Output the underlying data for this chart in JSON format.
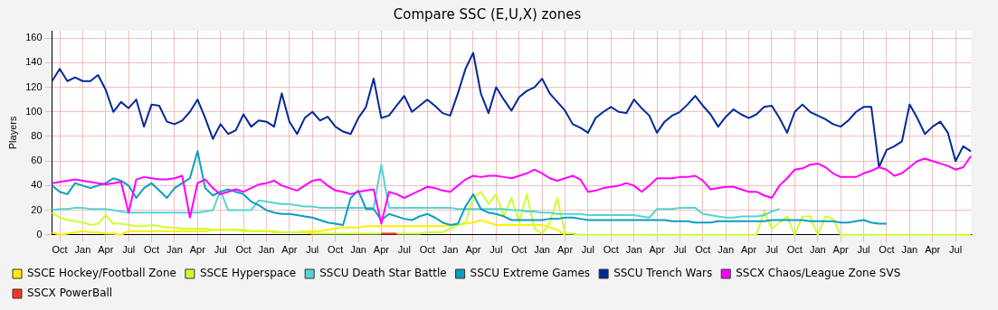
{
  "chart_data": {
    "type": "line",
    "title": "Compare SSC (E,U,X) zones",
    "ylabel": "Players",
    "grid": true,
    "legend": "bottom",
    "marker": "none",
    "line_style": "solid",
    "ylim": [
      0,
      166
    ],
    "yticks": [
      0,
      20,
      40,
      60,
      80,
      100,
      120,
      140,
      160
    ],
    "categories": [
      null,
      "Oct",
      null,
      null,
      "Jan",
      null,
      null,
      "Apr",
      null,
      null,
      "Jul",
      null,
      null,
      "Oct",
      null,
      null,
      "Jan",
      null,
      null,
      "Apr",
      null,
      null,
      "Jul",
      null,
      null,
      "Oct",
      null,
      null,
      "Jan",
      null,
      null,
      "Apr",
      null,
      null,
      "Jul",
      null,
      null,
      "Oct",
      null,
      null,
      "Jan",
      null,
      null,
      "Apr",
      null,
      null,
      "Jul",
      null,
      null,
      "Oct",
      null,
      null,
      "Jan",
      null,
      null,
      "Apr",
      null,
      null,
      "Jul",
      null,
      null,
      "Oct",
      null,
      null,
      "Jan",
      null,
      null,
      "Apr",
      null,
      null,
      "Jul",
      null,
      null,
      "Oct",
      null,
      null,
      "Jan",
      null,
      null,
      "Apr",
      null,
      null,
      "Jul",
      null,
      null,
      "Oct",
      null,
      null,
      "Jan",
      null,
      null,
      "Apr",
      null,
      null,
      "Jul",
      null,
      null,
      "Oct",
      null,
      null,
      "Jan",
      null,
      null,
      "Apr",
      null,
      null,
      "Jul",
      null,
      null,
      "Oct",
      null,
      null,
      "Jan",
      null,
      null,
      "Apr",
      null,
      null,
      "Jul",
      null,
      null
    ],
    "series": [
      {
        "name": "SSCE Hockey/Football Zone",
        "color": "#ffee00",
        "values": [
          2,
          0,
          1,
          2,
          3,
          2,
          2,
          1,
          1,
          0,
          3,
          3,
          3,
          3,
          3,
          3,
          3,
          3,
          3,
          3,
          3,
          4,
          4,
          4,
          4,
          4,
          3,
          3,
          3,
          3,
          2,
          2,
          2,
          3,
          3,
          3,
          4,
          5,
          6,
          6,
          6,
          7,
          7,
          7,
          7,
          7,
          7,
          7,
          7,
          7,
          7,
          7,
          8,
          8,
          9,
          10,
          12,
          10,
          8,
          8,
          8,
          8,
          8,
          8,
          8,
          6,
          4,
          0,
          null,
          null,
          null,
          null,
          null,
          null,
          null,
          null,
          null,
          null,
          null,
          null,
          null,
          null,
          null,
          null,
          null,
          null,
          null,
          null,
          null,
          null,
          null,
          null,
          null,
          null,
          null,
          null,
          null,
          null,
          null,
          null,
          null,
          null,
          null,
          null,
          null,
          null,
          null,
          null,
          null,
          null,
          null,
          null,
          null,
          null,
          null,
          null,
          null,
          null,
          null,
          null,
          null
        ]
      },
      {
        "name": "SSCE Hyperspace",
        "color": "#ccff33",
        "values": [
          18,
          14,
          12,
          11,
          10,
          8,
          9,
          16,
          9,
          9,
          8,
          7,
          7,
          8,
          7,
          6,
          6,
          5,
          5,
          5,
          5,
          4,
          4,
          4,
          4,
          3,
          3,
          3,
          3,
          2,
          2,
          2,
          2,
          2,
          1,
          1,
          1,
          1,
          1,
          1,
          1,
          1,
          1,
          1,
          null,
          1,
          1,
          1,
          1,
          2,
          2,
          2,
          5,
          8,
          10,
          30,
          35,
          25,
          33,
          15,
          30,
          10,
          33,
          5,
          1,
          10,
          30,
          1,
          1,
          0,
          0,
          0,
          0,
          0,
          0,
          0,
          0,
          0,
          0,
          0,
          0,
          0,
          0,
          0,
          0,
          0,
          0,
          0,
          0,
          0,
          0,
          0,
          0,
          19,
          5,
          10,
          15,
          0,
          15,
          15,
          0,
          15,
          13,
          0,
          0,
          0,
          0,
          0,
          0,
          0,
          0,
          0,
          0,
          0,
          0,
          0,
          0,
          0,
          0,
          0,
          0
        ]
      },
      {
        "name": "SSCU Death Star Battle",
        "color": "#55d4d4",
        "values": [
          20,
          21,
          21,
          22,
          22,
          21,
          21,
          21,
          20,
          19,
          18,
          18,
          18,
          18,
          18,
          18,
          18,
          18,
          18,
          18,
          19,
          20,
          36,
          20,
          20,
          20,
          20,
          28,
          27,
          26,
          25,
          25,
          24,
          23,
          23,
          22,
          22,
          22,
          22,
          22,
          22,
          22,
          22,
          57,
          22,
          22,
          22,
          22,
          22,
          22,
          22,
          22,
          22,
          21,
          21,
          21,
          21,
          21,
          21,
          21,
          20,
          20,
          19,
          19,
          18,
          18,
          17,
          17,
          17,
          17,
          16,
          16,
          16,
          16,
          16,
          16,
          16,
          15,
          14,
          21,
          21,
          21,
          22,
          22,
          22,
          17,
          16,
          15,
          14,
          14,
          15,
          15,
          15,
          16,
          19,
          21,
          null,
          null,
          null,
          null,
          null,
          null,
          null,
          null,
          null,
          null,
          null,
          null,
          null,
          null,
          null,
          null,
          null,
          null,
          null,
          null,
          null,
          null,
          null,
          null,
          null
        ]
      },
      {
        "name": "SSCU Extreme Games",
        "color": "#0a9ec0",
        "values": [
          40,
          35,
          33,
          42,
          40,
          38,
          40,
          42,
          46,
          44,
          40,
          30,
          38,
          42,
          36,
          30,
          38,
          42,
          46,
          68,
          38,
          32,
          35,
          37,
          35,
          33,
          27,
          24,
          20,
          18,
          17,
          17,
          16,
          15,
          14,
          12,
          10,
          9,
          8,
          30,
          36,
          21,
          21,
          12,
          17,
          15,
          13,
          12,
          15,
          17,
          14,
          10,
          8,
          9,
          23,
          33,
          21,
          18,
          17,
          15,
          12,
          12,
          12,
          12,
          12,
          13,
          13,
          14,
          14,
          13,
          12,
          12,
          12,
          12,
          12,
          12,
          12,
          12,
          12,
          12,
          12,
          11,
          11,
          11,
          10,
          10,
          10,
          11,
          11,
          11,
          11,
          11,
          11,
          11,
          12,
          12,
          12,
          12,
          12,
          11,
          11,
          11,
          11,
          10,
          10,
          11,
          12,
          10,
          9,
          9,
          null,
          null,
          null,
          null,
          null,
          null,
          null,
          null,
          null,
          null,
          null
        ]
      },
      {
        "name": "SSCU Trench Wars",
        "color": "#002a97",
        "values": [
          125,
          135,
          125,
          128,
          125,
          125,
          130,
          118,
          100,
          108,
          103,
          110,
          88,
          106,
          105,
          92,
          90,
          93,
          100,
          110,
          95,
          78,
          90,
          82,
          85,
          98,
          88,
          93,
          92,
          88,
          115,
          92,
          82,
          95,
          100,
          93,
          96,
          88,
          84,
          82,
          95,
          104,
          127,
          95,
          97,
          105,
          113,
          100,
          105,
          110,
          105,
          99,
          97,
          115,
          135,
          148,
          115,
          99,
          120,
          110,
          101,
          112,
          117,
          120,
          127,
          115,
          108,
          101,
          90,
          87,
          83,
          95,
          100,
          104,
          100,
          99,
          110,
          103,
          97,
          83,
          92,
          97,
          100,
          106,
          113,
          105,
          98,
          88,
          96,
          102,
          98,
          95,
          98,
          104,
          105,
          95,
          83,
          100,
          106,
          100,
          97,
          94,
          90,
          88,
          93,
          100,
          104,
          104,
          55,
          69,
          72,
          76,
          106,
          95,
          82,
          88,
          92,
          83,
          60,
          72,
          68
        ]
      },
      {
        "name": "SSCX Chaos/League Zone SVS",
        "color": "#ff00ff",
        "values": [
          42,
          43,
          44,
          45,
          44,
          43,
          42,
          41,
          42,
          43,
          18,
          45,
          47,
          46,
          45,
          45,
          46,
          48,
          14,
          42,
          45,
          38,
          33,
          35,
          37,
          35,
          38,
          41,
          42,
          44,
          40,
          38,
          36,
          40,
          44,
          45,
          40,
          36,
          35,
          33,
          35,
          36,
          37,
          9,
          35,
          33,
          30,
          33,
          36,
          39,
          38,
          36,
          35,
          40,
          45,
          48,
          47,
          48,
          48,
          47,
          46,
          48,
          50,
          53,
          50,
          46,
          44,
          46,
          48,
          45,
          35,
          36,
          38,
          39,
          40,
          42,
          40,
          35,
          40,
          46,
          46,
          46,
          47,
          47,
          48,
          44,
          37,
          38,
          39,
          39,
          37,
          35,
          35,
          32,
          30,
          40,
          46,
          53,
          54,
          57,
          58,
          55,
          50,
          47,
          47,
          47,
          50,
          52,
          55,
          53,
          48,
          50,
          55,
          60,
          62,
          60,
          58,
          56,
          53,
          55,
          64
        ]
      },
      {
        "name": "SSCX PowerBall",
        "color": "#ff3322",
        "values": [
          null,
          null,
          null,
          null,
          null,
          null,
          null,
          null,
          null,
          null,
          null,
          null,
          null,
          null,
          null,
          null,
          null,
          null,
          null,
          null,
          null,
          null,
          null,
          null,
          null,
          null,
          null,
          null,
          null,
          null,
          null,
          null,
          null,
          null,
          null,
          null,
          null,
          null,
          null,
          null,
          null,
          null,
          null,
          1,
          1,
          1,
          null,
          null,
          null,
          null,
          null,
          null,
          null,
          null,
          null,
          null,
          null,
          null,
          null,
          null,
          null,
          null,
          null,
          null,
          null,
          null,
          null,
          null,
          null,
          null,
          null,
          null,
          null,
          null,
          null,
          null,
          null,
          null,
          null,
          null,
          null,
          null,
          null,
          null,
          null,
          null,
          null,
          null,
          null,
          null,
          null,
          null,
          null,
          null,
          null,
          null,
          null,
          null,
          null,
          null,
          null,
          null,
          null,
          null,
          null,
          null,
          null,
          null,
          null,
          null,
          null,
          null,
          null,
          null,
          null,
          null,
          null,
          null,
          null,
          null,
          null
        ]
      }
    ]
  }
}
